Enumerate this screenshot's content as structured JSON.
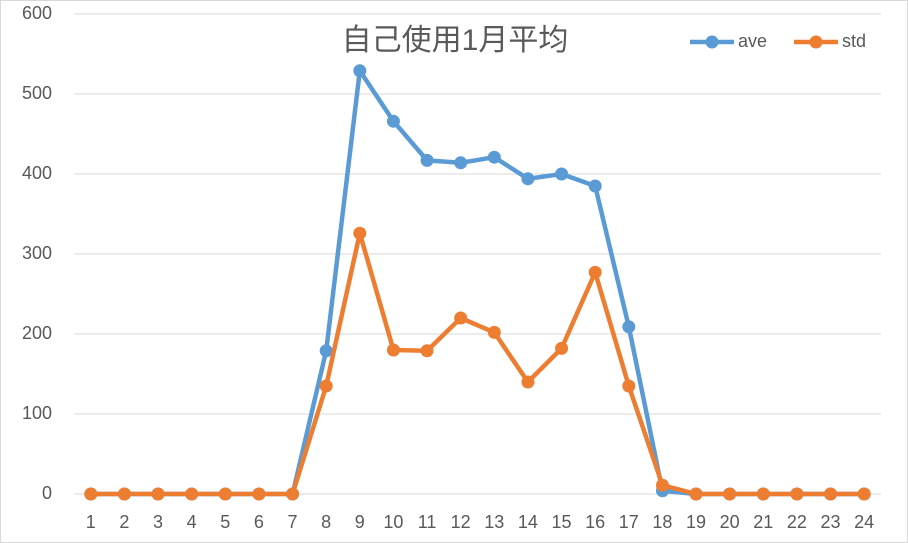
{
  "chart_data": {
    "type": "line",
    "title": "自己使用1月平均",
    "categories": [
      "1",
      "2",
      "3",
      "4",
      "5",
      "6",
      "7",
      "8",
      "9",
      "10",
      "11",
      "12",
      "13",
      "14",
      "15",
      "16",
      "17",
      "18",
      "19",
      "20",
      "21",
      "22",
      "23",
      "24"
    ],
    "series": [
      {
        "name": "ave",
        "color": "#5b9bd5",
        "values": [
          0,
          0,
          0,
          0,
          0,
          0,
          0,
          179,
          529,
          466,
          417,
          414,
          421,
          394,
          400,
          385,
          209,
          4,
          0,
          0,
          0,
          0,
          0,
          0
        ]
      },
      {
        "name": "std",
        "color": "#ed7d31",
        "values": [
          0,
          0,
          0,
          0,
          0,
          0,
          0,
          135,
          326,
          180,
          179,
          220,
          202,
          140,
          182,
          277,
          135,
          11,
          0,
          0,
          0,
          0,
          0,
          0
        ]
      }
    ],
    "ylim": [
      0,
      600
    ],
    "yticks": [
      0,
      100,
      200,
      300,
      400,
      500,
      600
    ],
    "grid": true,
    "legend": "top-right"
  }
}
